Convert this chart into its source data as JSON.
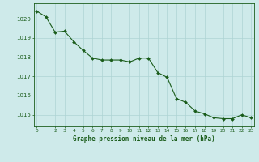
{
  "x": [
    0,
    1,
    2,
    3,
    4,
    5,
    6,
    7,
    8,
    9,
    10,
    11,
    12,
    13,
    14,
    15,
    16,
    17,
    18,
    19,
    20,
    21,
    22,
    23
  ],
  "y": [
    1020.4,
    1020.1,
    1019.3,
    1019.35,
    1018.8,
    1018.35,
    1017.95,
    1017.85,
    1017.85,
    1017.85,
    1017.75,
    1017.95,
    1017.95,
    1017.2,
    1016.95,
    1015.85,
    1015.65,
    1015.2,
    1015.05,
    1014.85,
    1014.8,
    1014.8,
    1015.0,
    1014.85
  ],
  "ylim": [
    1014.4,
    1020.8
  ],
  "xlim": [
    -0.3,
    23.3
  ],
  "yticks": [
    1015,
    1016,
    1017,
    1018,
    1019,
    1020
  ],
  "xticks": [
    0,
    2,
    3,
    4,
    5,
    6,
    7,
    8,
    9,
    10,
    11,
    12,
    13,
    14,
    15,
    16,
    17,
    18,
    19,
    20,
    21,
    22,
    23
  ],
  "line_color": "#1a5c1a",
  "marker_color": "#1a5c1a",
  "bg_color": "#ceeaea",
  "grid_color": "#aed4d4",
  "xlabel": "Graphe pression niveau de la mer (hPa)",
  "xlabel_color": "#1a5c1a",
  "tick_color": "#1a5c1a",
  "spine_color": "#1a5c1a"
}
